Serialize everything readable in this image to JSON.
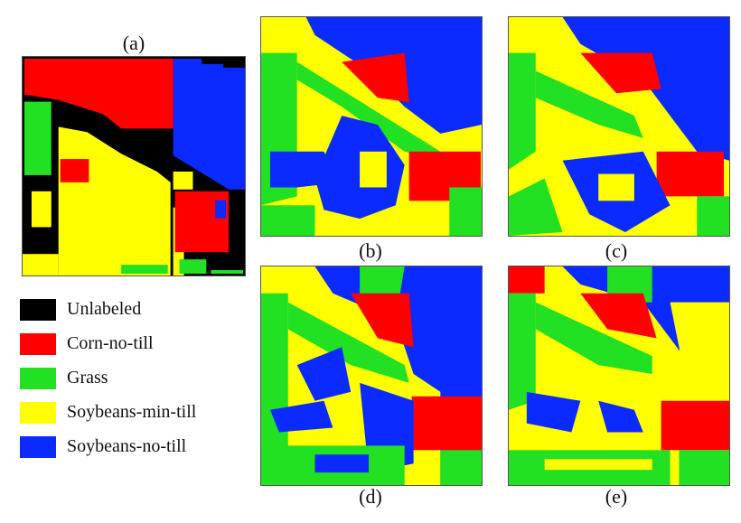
{
  "figure": {
    "panels": [
      {
        "id": "a",
        "label": "(a)"
      },
      {
        "id": "b",
        "label": "(b)"
      },
      {
        "id": "c",
        "label": "(c)"
      },
      {
        "id": "d",
        "label": "(d)"
      },
      {
        "id": "e",
        "label": "(e)"
      }
    ],
    "legend": [
      {
        "label": "Unlabeled",
        "color": "#000000"
      },
      {
        "label": "Corn-no-till",
        "color": "#ff0000"
      },
      {
        "label": "Grass",
        "color": "#22e022"
      },
      {
        "label": "Soybeans-min-till",
        "color": "#ffff00"
      },
      {
        "label": "Soybeans-no-till",
        "color": "#0a2aff"
      }
    ]
  }
}
